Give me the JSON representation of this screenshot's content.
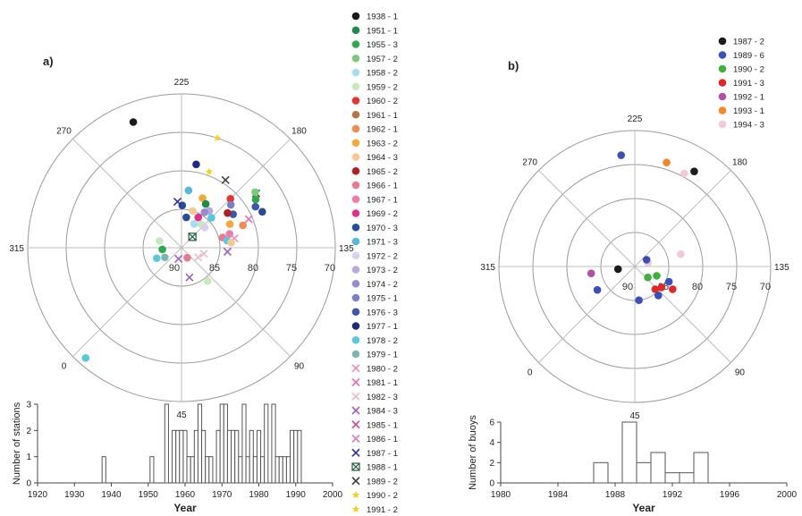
{
  "chart_data": [
    {
      "panel_label": "a)",
      "type": "scatter",
      "projection": "polar",
      "longitude_labels": [
        "225",
        "180",
        "135",
        "90",
        "45",
        "0",
        "315",
        "270"
      ],
      "latitude_labels": [
        "90",
        "85",
        "80",
        "75",
        "70"
      ],
      "legend": [
        {
          "label": "1938 - 1",
          "color": "#1a1a1a",
          "marker": "dot"
        },
        {
          "label": "1951 - 1",
          "color": "#1e8a4a",
          "marker": "dot"
        },
        {
          "label": "1955 - 3",
          "color": "#2ea84d",
          "marker": "dot"
        },
        {
          "label": "1957  - 2",
          "color": "#7cc97c",
          "marker": "dot"
        },
        {
          "label": "1958 - 2",
          "color": "#a8dcf0",
          "marker": "dot"
        },
        {
          "label": "1959 - 2",
          "color": "#c8e8c0",
          "marker": "dot"
        },
        {
          "label": "1960 - 2",
          "color": "#e8332a",
          "marker": "dot"
        },
        {
          "label": "1961 - 1",
          "color": "#b0784a",
          "marker": "dot"
        },
        {
          "label": "1962 - 1",
          "color": "#f08a50",
          "marker": "dot"
        },
        {
          "label": "1963 - 2",
          "color": "#f5a83a",
          "marker": "dot"
        },
        {
          "label": "1964 - 3",
          "color": "#f8c890",
          "marker": "dot"
        },
        {
          "label": "1965 - 2",
          "color": "#b02020",
          "marker": "dot"
        },
        {
          "label": "1966 - 1",
          "color": "#e87a90",
          "marker": "dot"
        },
        {
          "label": "1967 - 1",
          "color": "#f27aa8",
          "marker": "dot"
        },
        {
          "label": "1969 - 2",
          "color": "#e0308a",
          "marker": "dot"
        },
        {
          "label": "1970 - 3",
          "color": "#2a4a9a",
          "marker": "dot"
        },
        {
          "label": "1971 - 3",
          "color": "#58b8d8",
          "marker": "dot"
        },
        {
          "label": "1972 - 2",
          "color": "#d8d0ec",
          "marker": "dot"
        },
        {
          "label": "1973 - 2",
          "color": "#b8a8dc",
          "marker": "dot"
        },
        {
          "label": "1974 - 2",
          "color": "#9a8ad0",
          "marker": "dot"
        },
        {
          "label": "1975 - 1",
          "color": "#7a80c8",
          "marker": "dot"
        },
        {
          "label": "1976 - 3",
          "color": "#3a58b0",
          "marker": "dot"
        },
        {
          "label": "1977 - 1",
          "color": "#1e2a80",
          "marker": "dot"
        },
        {
          "label": "1978 - 2",
          "color": "#58c8e0",
          "marker": "dot"
        },
        {
          "label": "1979 - 1",
          "color": "#78b8b0",
          "marker": "dot"
        },
        {
          "label": "1980 - 2",
          "color": "#e890c0",
          "marker": "x"
        },
        {
          "label": "1981 - 1",
          "color": "#e070b0",
          "marker": "x"
        },
        {
          "label": "1982 - 3",
          "color": "#f0b8d0",
          "marker": "x"
        },
        {
          "label": "1984 - 3",
          "color": "#a060c0",
          "marker": "x"
        },
        {
          "label": "1985 - 1",
          "color": "#c050a0",
          "marker": "x"
        },
        {
          "label": "1986 - 1",
          "color": "#d080c0",
          "marker": "x"
        },
        {
          "label": "1987 - 1",
          "color": "#3030a0",
          "marker": "x"
        },
        {
          "label": "1988 - 1",
          "color": "#205a40",
          "marker": "boxx"
        },
        {
          "label": "1989 - 2",
          "color": "#404040",
          "marker": "x"
        },
        {
          "label": "1990 - 2",
          "color": "#f0d020",
          "marker": "star"
        },
        {
          "label": "1991 - 2",
          "color": "#f0d020",
          "marker": "star"
        }
      ],
      "points": [
        {
          "lon": 246,
          "lat": 72.5,
          "color": "#1a1a1a",
          "marker": "dot"
        },
        {
          "lon": 4,
          "lat": 71,
          "color": "#58c8e0",
          "marker": "dot"
        },
        {
          "lon": 215,
          "lat": 79,
          "color": "#1e2a80",
          "marker": "dot"
        },
        {
          "lon": 207,
          "lat": 75,
          "color": "#f0d020",
          "marker": "star"
        },
        {
          "lon": 205,
          "lat": 79.5,
          "color": "#f0d020",
          "marker": "star"
        },
        {
          "lon": 192,
          "lat": 79.5,
          "color": "#404040",
          "marker": "x"
        },
        {
          "lon": 180,
          "lat": 81,
          "color": "#e8332a",
          "marker": "dot"
        },
        {
          "lon": 171,
          "lat": 78,
          "color": "#404040",
          "marker": "x"
        },
        {
          "lon": 172,
          "lat": 78,
          "color": "#7cc97c",
          "marker": "dot"
        },
        {
          "lon": 168,
          "lat": 78.5,
          "color": "#2ea84d",
          "marker": "dot"
        },
        {
          "lon": 164,
          "lat": 79,
          "color": "#3a58b0",
          "marker": "dot"
        },
        {
          "lon": 159,
          "lat": 78.5,
          "color": "#2a4a9a",
          "marker": "dot"
        },
        {
          "lon": 176,
          "lat": 81.5,
          "color": "#7a80c8",
          "marker": "dot"
        },
        {
          "lon": 168,
          "lat": 82,
          "color": "#3a58b0",
          "marker": "dot"
        },
        {
          "lon": 172,
          "lat": 82.5,
          "color": "#b02020",
          "marker": "dot"
        },
        {
          "lon": 158,
          "lat": 80.5,
          "color": "#e070b0",
          "marker": "x"
        },
        {
          "lon": 155,
          "lat": 81.5,
          "color": "#f08a50",
          "marker": "dot"
        },
        {
          "lon": 161,
          "lat": 83,
          "color": "#f5a83a",
          "marker": "dot"
        },
        {
          "lon": 202,
          "lat": 83,
          "color": "#f5a83a",
          "marker": "dot"
        },
        {
          "lon": 196,
          "lat": 83.5,
          "color": "#1e8a4a",
          "marker": "dot"
        },
        {
          "lon": 188,
          "lat": 84,
          "color": "#b8a8dc",
          "marker": "dot"
        },
        {
          "lon": 192,
          "lat": 84.5,
          "color": "#9a8ad0",
          "marker": "dot"
        },
        {
          "lon": 180,
          "lat": 84.5,
          "color": "#58c8e0",
          "marker": "dot"
        },
        {
          "lon": 196,
          "lat": 85.5,
          "color": "#e0308a",
          "marker": "dot"
        },
        {
          "lon": 208,
          "lat": 85,
          "color": "#f8c890",
          "marker": "dot"
        },
        {
          "lon": 216,
          "lat": 86,
          "color": "#2a4a9a",
          "marker": "dot"
        },
        {
          "lon": 224,
          "lat": 84.5,
          "color": "#2a4a9a",
          "marker": "dot"
        },
        {
          "lon": 218,
          "lat": 82.5,
          "color": "#58b8d8",
          "marker": "dot"
        },
        {
          "lon": 230,
          "lat": 84,
          "color": "#3030a0",
          "marker": "x"
        },
        {
          "lon": 197,
          "lat": 86.5,
          "color": "#a8dcf0",
          "marker": "dot"
        },
        {
          "lon": 185,
          "lat": 86,
          "color": "#c8e8c0",
          "marker": "dot"
        },
        {
          "lon": 176,
          "lat": 86,
          "color": "#d8d0ec",
          "marker": "dot"
        },
        {
          "lon": 180,
          "lat": 88,
          "color": "#205a40",
          "marker": "boxx"
        },
        {
          "lon": 151,
          "lat": 83.5,
          "color": "#f27aa8",
          "marker": "dot"
        },
        {
          "lon": 149,
          "lat": 84.5,
          "color": "#e87a90",
          "marker": "dot"
        },
        {
          "lon": 145,
          "lat": 83,
          "color": "#e890c0",
          "marker": "x"
        },
        {
          "lon": 144,
          "lat": 84,
          "color": "#58c8e0",
          "marker": "dot"
        },
        {
          "lon": 141,
          "lat": 83.5,
          "color": "#f8c890",
          "marker": "dot"
        },
        {
          "lon": 130,
          "lat": 84,
          "color": "#a060c0",
          "marker": "x"
        },
        {
          "lon": 120,
          "lat": 87,
          "color": "#f0b8d0",
          "marker": "x"
        },
        {
          "lon": 105,
          "lat": 87.5,
          "color": "#f0b8d0",
          "marker": "x"
        },
        {
          "lon": 298,
          "lat": 87,
          "color": "#c8e8c0",
          "marker": "dot"
        },
        {
          "lon": 320,
          "lat": 87.5,
          "color": "#2ea84d",
          "marker": "dot"
        },
        {
          "lon": 345,
          "lat": 87.5,
          "color": "#78b8b0",
          "marker": "dot"
        },
        {
          "lon": 338,
          "lat": 86.5,
          "color": "#58c8e0",
          "marker": "dot"
        },
        {
          "lon": 30,
          "lat": 88.5,
          "color": "#a060c0",
          "marker": "x"
        },
        {
          "lon": 60,
          "lat": 86,
          "color": "#a060c0",
          "marker": "x"
        },
        {
          "lon": 83,
          "lat": 84.5,
          "color": "#c8e8c0",
          "marker": "dot"
        },
        {
          "lon": 75,
          "lat": 88.5,
          "color": "#e87a90",
          "marker": "dot"
        }
      ],
      "histogram": {
        "type": "bar",
        "xlabel": "Year",
        "ylabel": "Number of stations",
        "xlim": [
          1920,
          2000
        ],
        "ylim": [
          0,
          3
        ],
        "x_ticks": [
          "1920",
          "1930",
          "1940",
          "1950",
          "1960",
          "1970",
          "1980",
          "1990",
          "2000"
        ],
        "y_ticks": [
          "0",
          "1",
          "2",
          "3"
        ],
        "years": [
          1938,
          1951,
          1955,
          1957,
          1958,
          1959,
          1960,
          1961,
          1962,
          1963,
          1964,
          1965,
          1966,
          1967,
          1969,
          1970,
          1971,
          1972,
          1973,
          1974,
          1975,
          1976,
          1977,
          1978,
          1979,
          1980,
          1981,
          1982,
          1984,
          1985,
          1986,
          1987,
          1988,
          1989,
          1990,
          1991
        ],
        "values": [
          1,
          1,
          3,
          2,
          2,
          2,
          2,
          1,
          1,
          2,
          3,
          2,
          1,
          1,
          2,
          3,
          3,
          2,
          2,
          2,
          1,
          3,
          1,
          2,
          1,
          2,
          1,
          3,
          3,
          1,
          1,
          1,
          1,
          2,
          2,
          2
        ]
      }
    },
    {
      "panel_label": "b)",
      "type": "scatter",
      "projection": "polar",
      "longitude_labels": [
        "225",
        "180",
        "135",
        "90",
        "45",
        "0",
        "315",
        "270"
      ],
      "latitude_labels": [
        "90",
        "85",
        "80",
        "75",
        "70"
      ],
      "legend": [
        {
          "label": "1987 - 2",
          "color": "#1a1a1a",
          "marker": "dot"
        },
        {
          "label": "1989 - 6",
          "color": "#3a50b8",
          "marker": "dot"
        },
        {
          "label": "1990 - 2",
          "color": "#40b040",
          "marker": "dot"
        },
        {
          "label": "1991 - 3",
          "color": "#e02828",
          "marker": "dot"
        },
        {
          "label": "1992 - 1",
          "color": "#b050a8",
          "marker": "dot"
        },
        {
          "label": "1993 - 1",
          "color": "#f08a28",
          "marker": "dot"
        },
        {
          "label": "1994 - 3",
          "color": "#f4c8d8",
          "marker": "dot"
        }
      ],
      "points": [
        {
          "lon": 193,
          "lat": 73.5,
          "color": "#1a1a1a",
          "marker": "dot"
        },
        {
          "lon": 197,
          "lat": 74.5,
          "color": "#f4c8d8",
          "marker": "dot"
        },
        {
          "lon": 208,
          "lat": 74,
          "color": "#f08a28",
          "marker": "dot"
        },
        {
          "lon": 232,
          "lat": 73.5,
          "color": "#3a50b8",
          "marker": "dot"
        },
        {
          "lon": 150,
          "lat": 83,
          "color": "#f4c8d8",
          "marker": "dot"
        },
        {
          "lon": 111,
          "lat": 84.5,
          "color": "#3a50b8",
          "marker": "dot"
        },
        {
          "lon": 104,
          "lat": 83.5,
          "color": "#e02828",
          "marker": "dot"
        },
        {
          "lon": 97,
          "lat": 85,
          "color": "#e02828",
          "marker": "dot"
        },
        {
          "lon": 87,
          "lat": 85.5,
          "color": "#e02828",
          "marker": "dot"
        },
        {
          "lon": 84,
          "lat": 84.5,
          "color": "#3a50b8",
          "marker": "dot"
        },
        {
          "lon": 112,
          "lat": 86.5,
          "color": "#40b040",
          "marker": "dot"
        },
        {
          "lon": 95,
          "lat": 87.5,
          "color": "#40b040",
          "marker": "dot"
        },
        {
          "lon": 151,
          "lat": 88,
          "color": "#f4c8d8",
          "marker": "dot"
        },
        {
          "lon": 165,
          "lat": 88,
          "color": "#3a50b8",
          "marker": "dot"
        },
        {
          "lon": 52,
          "lat": 85,
          "color": "#3a50b8",
          "marker": "dot"
        },
        {
          "lon": 324,
          "lat": 83.5,
          "color": "#b050a8",
          "marker": "dot"
        },
        {
          "lon": 324,
          "lat": 87.5,
          "color": "#1a1a1a",
          "marker": "dot"
        },
        {
          "lon": 347,
          "lat": 83.5,
          "color": "#3a50b8",
          "marker": "dot"
        }
      ],
      "histogram": {
        "type": "bar",
        "xlabel": "Year",
        "ylabel": "Number of buoys",
        "xlim": [
          1980,
          2000
        ],
        "ylim": [
          0,
          6
        ],
        "x_ticks": [
          "1980",
          "1984",
          "1988",
          "1992",
          "1996",
          "2000"
        ],
        "y_ticks": [
          "0",
          "2",
          "4",
          "6"
        ],
        "years": [
          1987,
          1989,
          1990,
          1991,
          1992,
          1993,
          1994
        ],
        "values": [
          2,
          6,
          2,
          3,
          1,
          1,
          3
        ]
      }
    }
  ]
}
